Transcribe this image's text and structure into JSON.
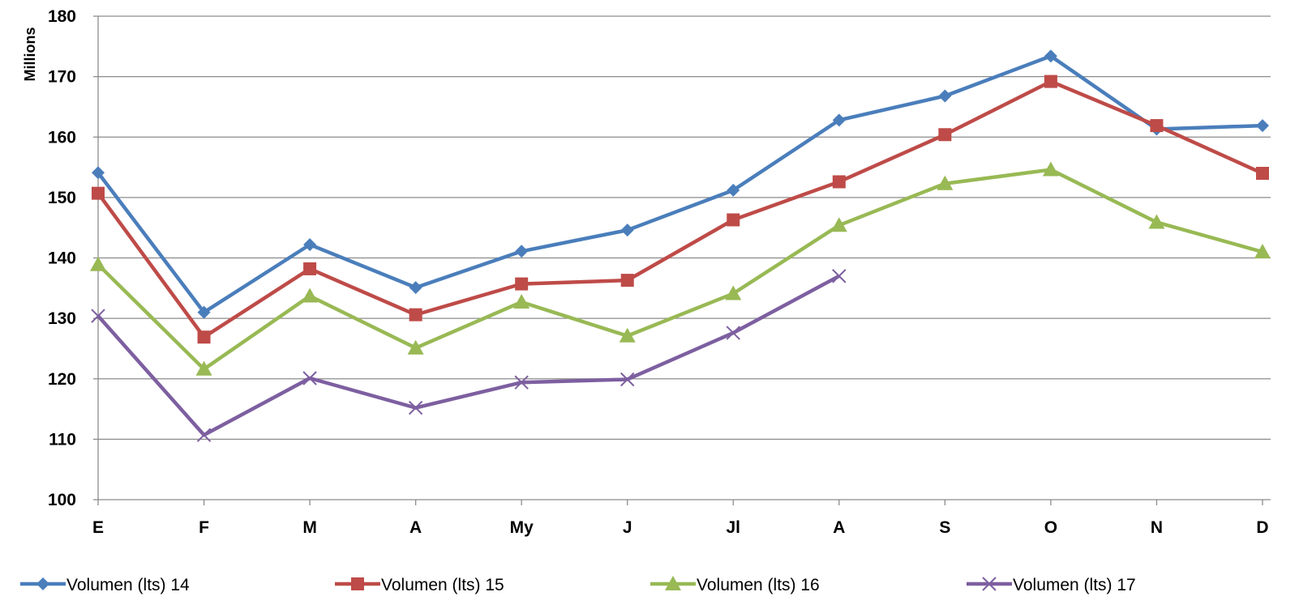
{
  "chart_data": {
    "type": "line",
    "categories": [
      "E",
      "F",
      "M",
      "A",
      "My",
      "J",
      "Jl",
      "A",
      "S",
      "O",
      "N",
      "D"
    ],
    "ylabel": "Millions",
    "ylim": [
      100,
      180
    ],
    "yticks": [
      "100",
      "110",
      "120",
      "130",
      "140",
      "150",
      "160",
      "170",
      "180"
    ],
    "grid": true,
    "legend_position": "bottom",
    "series": [
      {
        "name": "Volumen (lts) 14",
        "color": "#4a7ebb",
        "marker": "diamond",
        "values": [
          154.1,
          131.0,
          142.2,
          135.1,
          141.1,
          144.6,
          151.2,
          162.8,
          166.8,
          173.4,
          161.3,
          161.9
        ]
      },
      {
        "name": "Volumen (lts) 15",
        "color": "#be4b48",
        "marker": "square",
        "values": [
          150.7,
          126.9,
          138.2,
          130.6,
          135.7,
          136.3,
          146.3,
          152.6,
          160.4,
          169.2,
          161.9,
          154.0
        ]
      },
      {
        "name": "Volumen (lts) 16",
        "color": "#98b954",
        "marker": "triangle",
        "values": [
          138.9,
          121.6,
          133.7,
          125.1,
          132.7,
          127.1,
          134.1,
          145.4,
          152.3,
          154.6,
          145.9,
          141.0
        ]
      },
      {
        "name": "Volumen (lts) 17",
        "color": "#7d5fa0",
        "marker": "x",
        "values": [
          130.4,
          110.7,
          120.1,
          115.2,
          119.4,
          119.9,
          127.6,
          137.0,
          null,
          null,
          null,
          null
        ]
      }
    ]
  }
}
